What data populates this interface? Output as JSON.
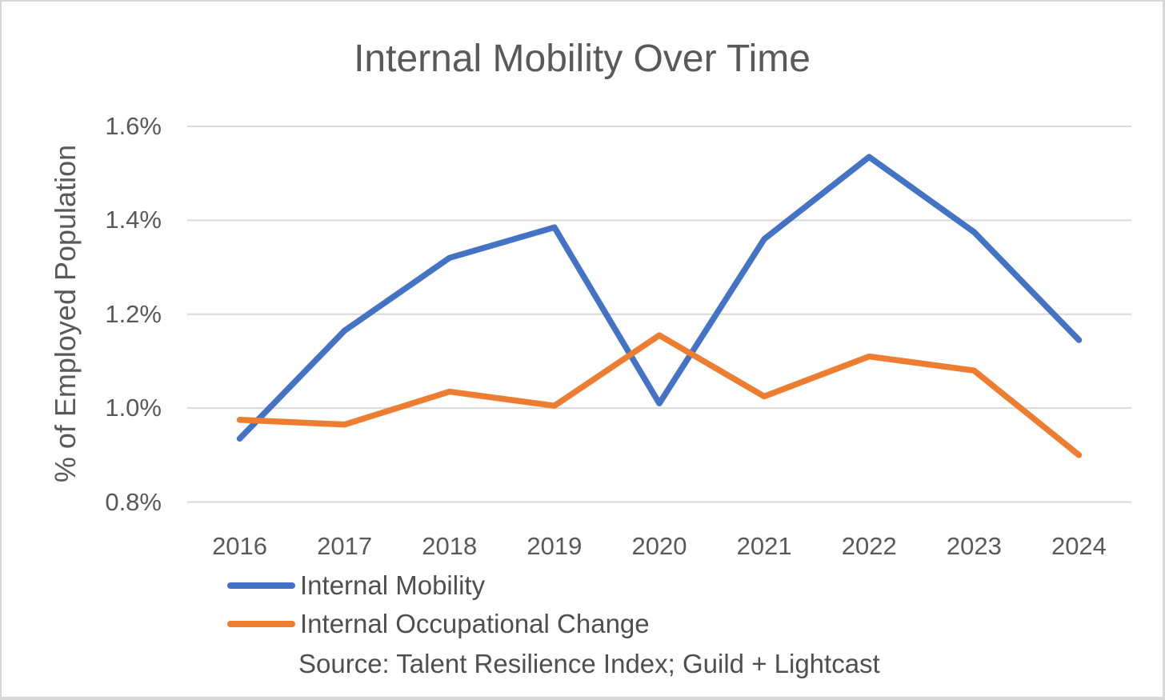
{
  "chart_data": {
    "type": "line",
    "title": "Internal Mobility Over Time",
    "xlabel": "",
    "ylabel": "% of Employed Population",
    "unit": "percent of employed population",
    "categories": [
      "2016",
      "2017",
      "2018",
      "2019",
      "2020",
      "2021",
      "2022",
      "2023",
      "2024"
    ],
    "series": [
      {
        "name": "Internal Mobility",
        "color": "#4472C4",
        "values": [
          0.935,
          1.165,
          1.32,
          1.385,
          1.01,
          1.36,
          1.535,
          1.375,
          1.145
        ]
      },
      {
        "name": "Internal Occupational Change",
        "color": "#ED7D31",
        "values": [
          0.975,
          0.965,
          1.035,
          1.005,
          1.155,
          1.025,
          1.11,
          1.08,
          0.9
        ]
      }
    ],
    "ylim": [
      0.8,
      1.6
    ],
    "ytick_values": [
      1.6,
      1.4,
      1.2,
      1.0,
      0.8
    ],
    "ytick_labels": [
      "1.6%",
      "1.4%",
      "1.2%",
      "1.0%",
      "0.8%"
    ],
    "grid": "horizontal gridlines on",
    "legend_position": "bottom-left",
    "source": "Source: Talent Resilience Index; Guild + Lightcast"
  },
  "colors": {
    "background": "#FFFFFF",
    "border": "#D8D8D8",
    "gridline": "#D9D9D9",
    "axis_text": "#595959",
    "legend_text": "#4F4F4F",
    "series_blue": "#4472C4",
    "series_orange": "#ED7D31"
  }
}
